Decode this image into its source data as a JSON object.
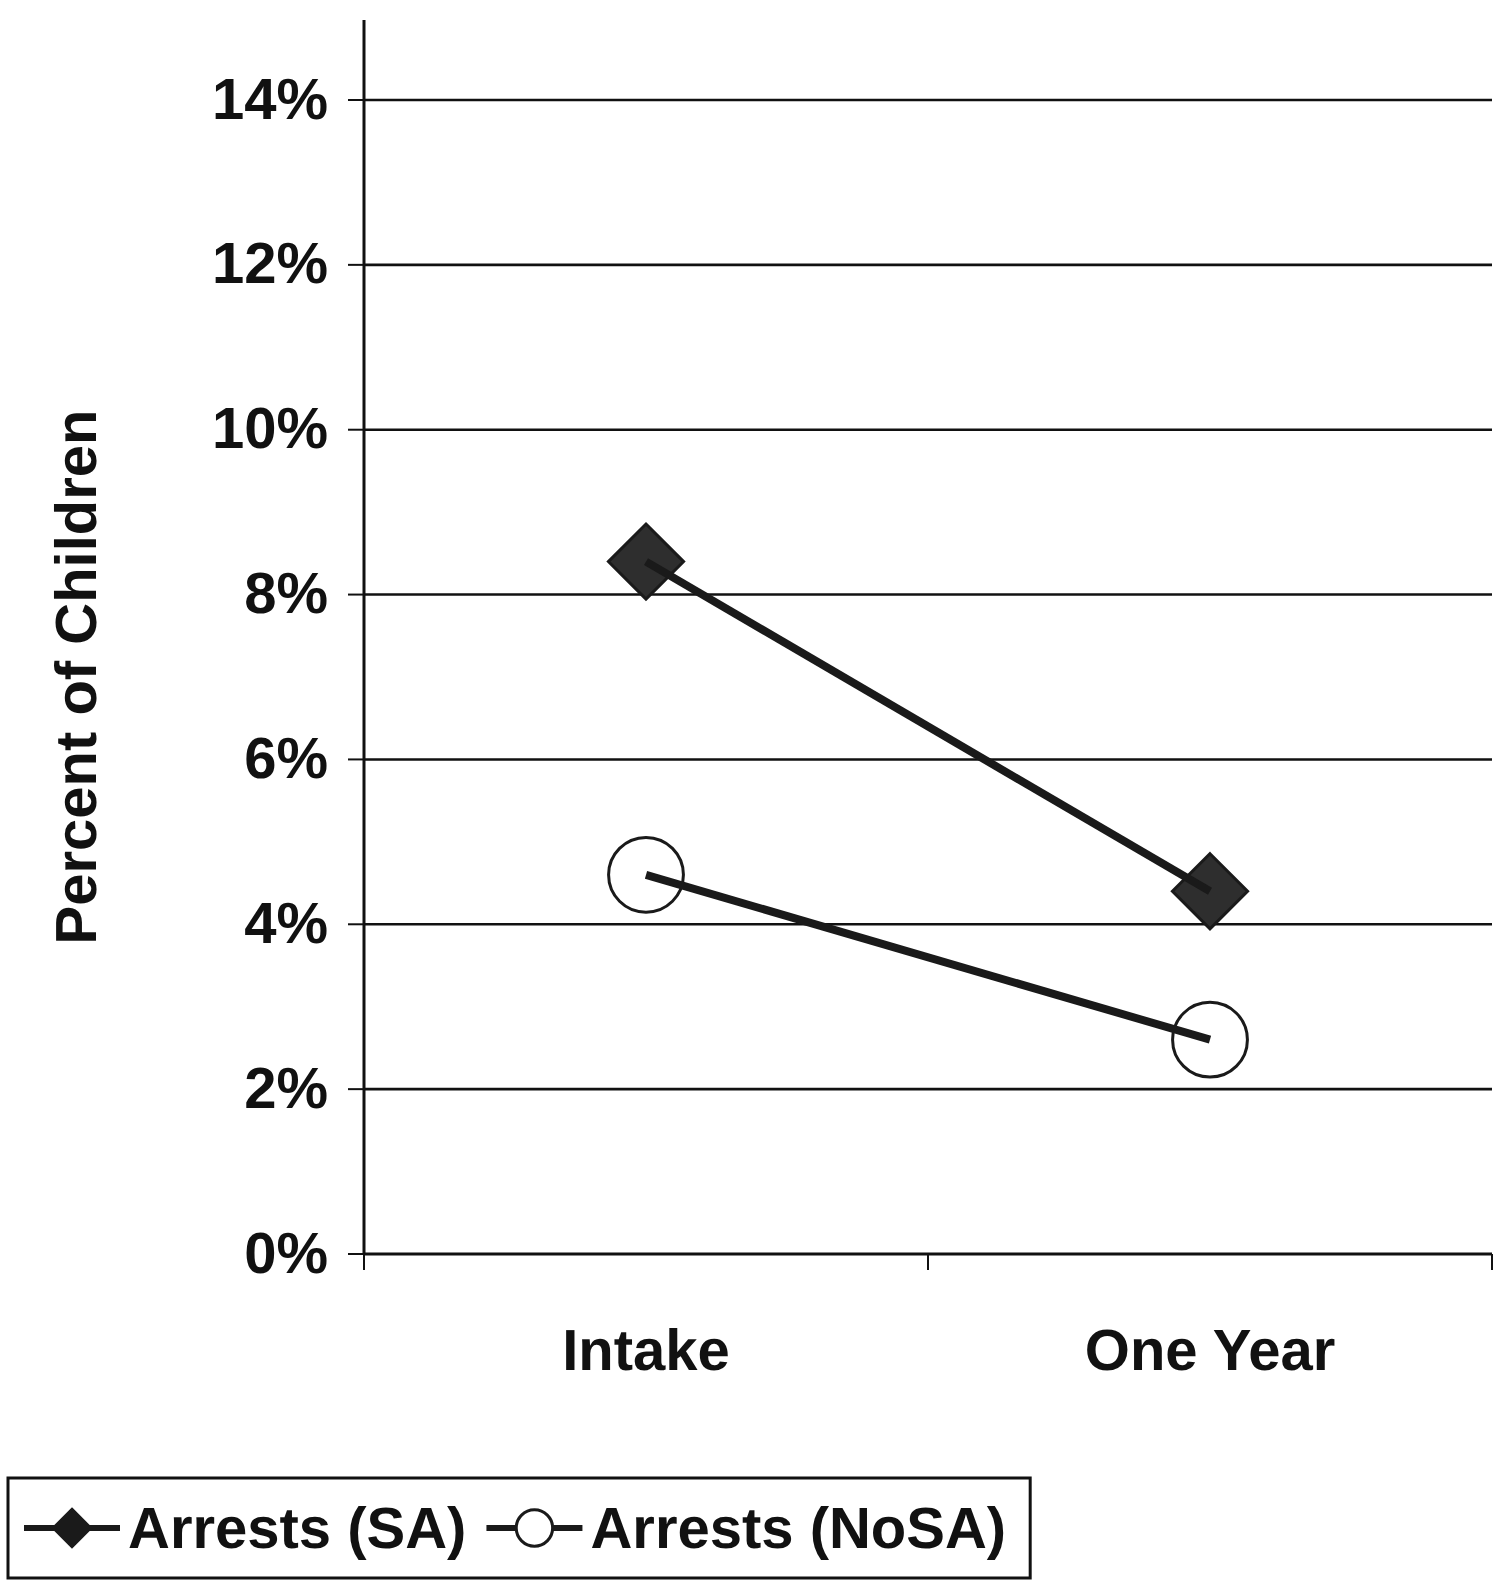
{
  "chart_data": {
    "type": "line",
    "ylabel": "Percent of Children",
    "categories": [
      "Intake",
      "One Year"
    ],
    "series": [
      {
        "name": "Arrests (SA)",
        "color": "#1a1a1a",
        "values": [
          8.4,
          4.4
        ],
        "marker": "diamond"
      },
      {
        "name": "Arrests (NoSA)",
        "color": "#1a1a1a",
        "values": [
          4.6,
          2.6
        ],
        "marker": "circle"
      }
    ],
    "ylim": [
      0,
      14
    ],
    "yticks": [
      {
        "value": 0,
        "label": "0%"
      },
      {
        "value": 2,
        "label": "2%"
      },
      {
        "value": 4,
        "label": "4%"
      },
      {
        "value": 6,
        "label": "6%"
      },
      {
        "value": 8,
        "label": "8%"
      },
      {
        "value": 10,
        "label": "10%"
      },
      {
        "value": 12,
        "label": "12%"
      },
      {
        "value": 14,
        "label": "14%"
      }
    ],
    "grid": "y",
    "legend": "bottom",
    "line_style": "solid"
  }
}
